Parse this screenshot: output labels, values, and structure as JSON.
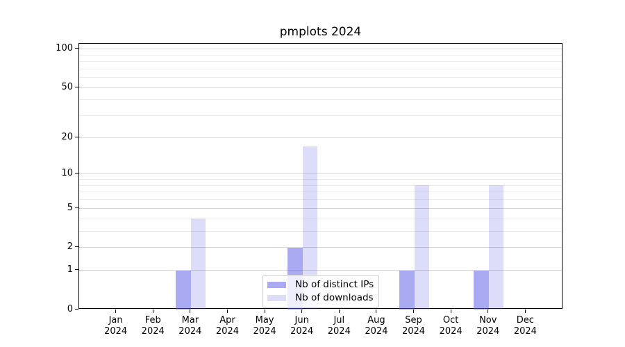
{
  "title": "pmplots 2024",
  "colors": {
    "series_base": "#5555e6",
    "distinct_ips_alpha": 0.5,
    "downloads_alpha": 0.2,
    "distinct_ips_rendered": "#aaaaf2",
    "downloads_rendered": "#dcdcfa",
    "grid_major": "#d9d9d9",
    "grid_minor": "#ececec",
    "axis": "#000000",
    "legend_border": "#cccccc"
  },
  "chart_data": {
    "type": "bar",
    "title": "pmplots 2024",
    "xlabel": "",
    "ylabel": "",
    "y_scale": "log1p",
    "ylim": [
      0,
      110
    ],
    "grid": true,
    "legend_position": "lower center",
    "categories": [
      "Jan 2024",
      "Feb 2024",
      "Mar 2024",
      "Apr 2024",
      "May 2024",
      "Jun 2024",
      "Jul 2024",
      "Aug 2024",
      "Sep 2024",
      "Oct 2024",
      "Nov 2024",
      "Dec 2024"
    ],
    "series": [
      {
        "name": "Nb of distinct IPs",
        "values": [
          0,
          0,
          1,
          0,
          0,
          2,
          0,
          0,
          1,
          0,
          1,
          0
        ]
      },
      {
        "name": "Nb of downloads",
        "values": [
          0,
          0,
          4,
          0,
          0,
          17,
          0,
          0,
          8,
          0,
          8,
          0
        ]
      }
    ],
    "yticks": [
      0,
      1,
      2,
      5,
      10,
      20,
      50,
      100
    ],
    "y_minor_gridlines": [
      3,
      4,
      6,
      7,
      8,
      9,
      30,
      40,
      60,
      70,
      80,
      90
    ]
  }
}
